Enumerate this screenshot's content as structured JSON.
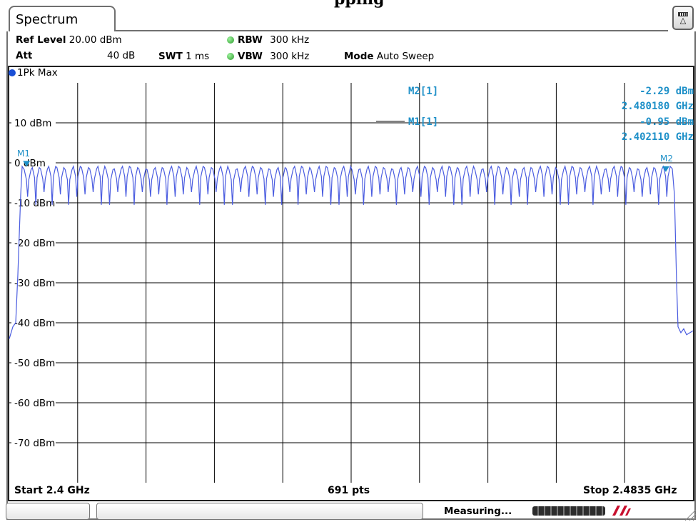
{
  "page_title_fragment": "pping",
  "window": {
    "tab_label": "Spectrum",
    "menu_icon": "settings-menu-icon"
  },
  "settings": {
    "ref_level_label": "Ref Level",
    "ref_level_value": "20.00 dBm",
    "att_label": "Att",
    "att_value": "40 dB",
    "swt_label": "SWT",
    "swt_value": "1 ms",
    "rbw_label": "RBW",
    "rbw_value": "300 kHz",
    "vbw_label": "VBW",
    "vbw_value": "300 kHz",
    "mode_label": "Mode",
    "mode_value": "Auto Sweep"
  },
  "trace": {
    "label": "1Pk Max",
    "color": "#4a5ce0"
  },
  "markers": {
    "m2_label": "M2[1]",
    "m2_level": "-2.29 dBm",
    "m2_freq": "2.480180 GHz",
    "m1_label": "M1[1]",
    "m1_level": "-0.95 dBm",
    "m1_freq": "2.402110 GHz",
    "m1_tag": "M1",
    "m2_tag": "M2",
    "color": "#1e90c8"
  },
  "footer": {
    "start": "Start 2.4 GHz",
    "points": "691 pts",
    "stop": "Stop 2.4835 GHz"
  },
  "status": {
    "text": "Measuring...",
    "progress_fraction": 0.85
  },
  "chart_data": {
    "type": "line",
    "xlabel": "",
    "ylabel": "",
    "x_unit": "GHz",
    "y_unit": "dBm",
    "xlim": [
      2.4,
      2.4835
    ],
    "ylim": [
      -80,
      20
    ],
    "grid": true,
    "ytick_labels": [
      "10 dBm",
      "0 dBm",
      "-10 dBm",
      "-20 dBm",
      "-30 dBm",
      "-40 dBm",
      "-50 dBm",
      "-60 dBm",
      "-70 dBm"
    ],
    "yticks": [
      10,
      0,
      -10,
      -20,
      -30,
      -40,
      -50,
      -60,
      -70
    ],
    "series": [
      {
        "channels_start_ghz": 2.402,
        "channel_spacing_ghz": 0.001,
        "channel_count": 79,
        "peak_dbm": -0.9,
        "trough_dbm": -8.5,
        "deep_trough_dbm": -10.5,
        "out_of_band_dbm": -42,
        "left_edge_ghz": 2.4018,
        "right_edge_ghz": 2.4808
      }
    ],
    "markers": [
      {
        "name": "M1",
        "x": 2.40211,
        "y": -0.95
      },
      {
        "name": "M2",
        "x": 2.48018,
        "y": -2.29
      }
    ]
  }
}
